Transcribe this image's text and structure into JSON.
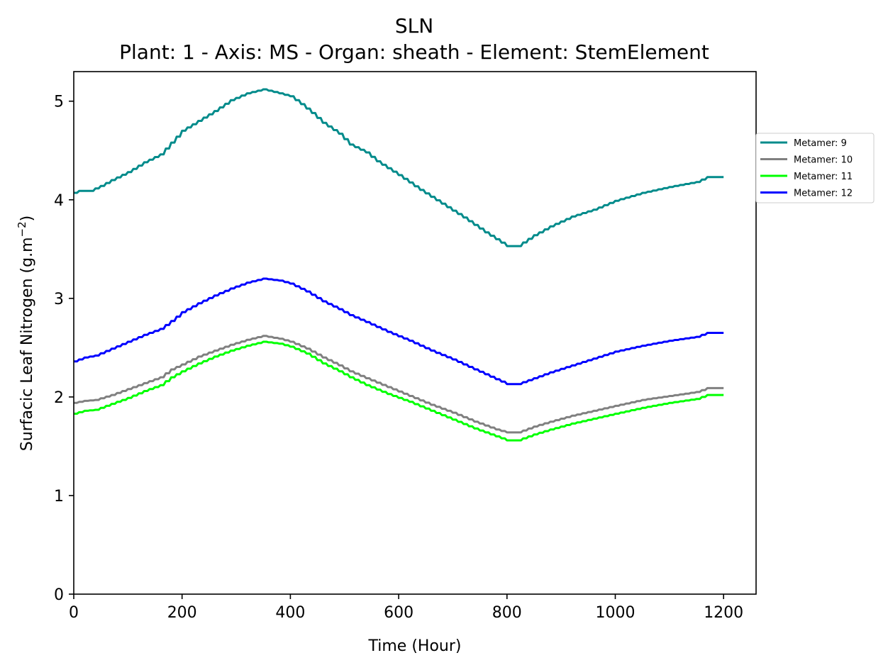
{
  "chart_data": {
    "type": "line",
    "title": "SLN",
    "subtitle": "Plant: 1 - Axis: MS - Organ: sheath - Element: StemElement",
    "xlabel": "Time (Hour)",
    "ylabel": "Surfacic Leaf Nitrogen (g.m",
    "ylabel_superscript": "−2",
    "ylabel_suffix": ")",
    "xlim": [
      0,
      1260
    ],
    "ylim": [
      0,
      5.3
    ],
    "xticks": [
      "0",
      "200",
      "400",
      "600",
      "800",
      "1000",
      "1200"
    ],
    "yticks": [
      "0",
      "1",
      "2",
      "3",
      "4",
      "5"
    ],
    "grid": false,
    "legend_position": "right-outside",
    "series": [
      {
        "name": "Metamer: 9",
        "color": "#008b8b",
        "points": [
          [
            0,
            4.07
          ],
          [
            10,
            4.09
          ],
          [
            30,
            4.09
          ],
          [
            50,
            4.14
          ],
          [
            70,
            4.2
          ],
          [
            100,
            4.28
          ],
          [
            130,
            4.38
          ],
          [
            160,
            4.46
          ],
          [
            180,
            4.58
          ],
          [
            200,
            4.7
          ],
          [
            230,
            4.8
          ],
          [
            260,
            4.9
          ],
          [
            290,
            5.01
          ],
          [
            320,
            5.08
          ],
          [
            350,
            5.12
          ],
          [
            380,
            5.08
          ],
          [
            400,
            5.05
          ],
          [
            420,
            4.97
          ],
          [
            440,
            4.88
          ],
          [
            460,
            4.78
          ],
          [
            490,
            4.67
          ],
          [
            510,
            4.56
          ],
          [
            540,
            4.48
          ],
          [
            560,
            4.39
          ],
          [
            600,
            4.25
          ],
          [
            640,
            4.1
          ],
          [
            680,
            3.96
          ],
          [
            720,
            3.82
          ],
          [
            760,
            3.67
          ],
          [
            800,
            3.53
          ],
          [
            820,
            3.53
          ],
          [
            850,
            3.64
          ],
          [
            880,
            3.73
          ],
          [
            920,
            3.83
          ],
          [
            960,
            3.9
          ],
          [
            1000,
            3.99
          ],
          [
            1050,
            4.07
          ],
          [
            1100,
            4.13
          ],
          [
            1150,
            4.18
          ],
          [
            1170,
            4.23
          ],
          [
            1200,
            4.23
          ]
        ]
      },
      {
        "name": "Metamer: 10",
        "color": "#808080",
        "points": [
          [
            0,
            1.94
          ],
          [
            20,
            1.96
          ],
          [
            40,
            1.97
          ],
          [
            70,
            2.02
          ],
          [
            100,
            2.08
          ],
          [
            130,
            2.14
          ],
          [
            160,
            2.2
          ],
          [
            180,
            2.28
          ],
          [
            200,
            2.33
          ],
          [
            230,
            2.41
          ],
          [
            260,
            2.47
          ],
          [
            290,
            2.53
          ],
          [
            320,
            2.58
          ],
          [
            350,
            2.62
          ],
          [
            380,
            2.59
          ],
          [
            400,
            2.56
          ],
          [
            430,
            2.49
          ],
          [
            460,
            2.4
          ],
          [
            490,
            2.32
          ],
          [
            510,
            2.26
          ],
          [
            540,
            2.19
          ],
          [
            580,
            2.1
          ],
          [
            620,
            2.01
          ],
          [
            660,
            1.92
          ],
          [
            700,
            1.84
          ],
          [
            740,
            1.75
          ],
          [
            780,
            1.67
          ],
          [
            800,
            1.64
          ],
          [
            820,
            1.64
          ],
          [
            850,
            1.7
          ],
          [
            880,
            1.75
          ],
          [
            920,
            1.81
          ],
          [
            960,
            1.86
          ],
          [
            1000,
            1.91
          ],
          [
            1050,
            1.97
          ],
          [
            1100,
            2.01
          ],
          [
            1150,
            2.05
          ],
          [
            1170,
            2.09
          ],
          [
            1200,
            2.09
          ]
        ]
      },
      {
        "name": "Metamer: 11",
        "color": "#00ff00",
        "points": [
          [
            0,
            1.83
          ],
          [
            20,
            1.86
          ],
          [
            40,
            1.87
          ],
          [
            70,
            1.93
          ],
          [
            100,
            1.99
          ],
          [
            130,
            2.06
          ],
          [
            160,
            2.12
          ],
          [
            180,
            2.2
          ],
          [
            200,
            2.26
          ],
          [
            230,
            2.34
          ],
          [
            260,
            2.41
          ],
          [
            290,
            2.47
          ],
          [
            320,
            2.52
          ],
          [
            350,
            2.56
          ],
          [
            380,
            2.54
          ],
          [
            400,
            2.51
          ],
          [
            430,
            2.44
          ],
          [
            460,
            2.34
          ],
          [
            490,
            2.26
          ],
          [
            510,
            2.2
          ],
          [
            540,
            2.12
          ],
          [
            580,
            2.03
          ],
          [
            620,
            1.95
          ],
          [
            660,
            1.86
          ],
          [
            700,
            1.77
          ],
          [
            740,
            1.68
          ],
          [
            780,
            1.6
          ],
          [
            800,
            1.56
          ],
          [
            820,
            1.56
          ],
          [
            850,
            1.62
          ],
          [
            880,
            1.67
          ],
          [
            920,
            1.73
          ],
          [
            960,
            1.78
          ],
          [
            1000,
            1.83
          ],
          [
            1050,
            1.89
          ],
          [
            1100,
            1.94
          ],
          [
            1150,
            1.98
          ],
          [
            1170,
            2.02
          ],
          [
            1200,
            2.02
          ]
        ]
      },
      {
        "name": "Metamer: 12",
        "color": "#0000ff",
        "points": [
          [
            0,
            2.36
          ],
          [
            20,
            2.4
          ],
          [
            40,
            2.42
          ],
          [
            70,
            2.49
          ],
          [
            100,
            2.56
          ],
          [
            130,
            2.63
          ],
          [
            160,
            2.69
          ],
          [
            180,
            2.77
          ],
          [
            200,
            2.86
          ],
          [
            230,
            2.95
          ],
          [
            260,
            3.03
          ],
          [
            290,
            3.1
          ],
          [
            320,
            3.16
          ],
          [
            350,
            3.2
          ],
          [
            380,
            3.18
          ],
          [
            400,
            3.15
          ],
          [
            430,
            3.07
          ],
          [
            460,
            2.97
          ],
          [
            490,
            2.89
          ],
          [
            510,
            2.83
          ],
          [
            540,
            2.76
          ],
          [
            580,
            2.66
          ],
          [
            620,
            2.57
          ],
          [
            660,
            2.47
          ],
          [
            700,
            2.38
          ],
          [
            740,
            2.28
          ],
          [
            780,
            2.18
          ],
          [
            800,
            2.13
          ],
          [
            820,
            2.13
          ],
          [
            850,
            2.19
          ],
          [
            880,
            2.25
          ],
          [
            920,
            2.32
          ],
          [
            960,
            2.39
          ],
          [
            1000,
            2.46
          ],
          [
            1050,
            2.52
          ],
          [
            1100,
            2.57
          ],
          [
            1150,
            2.61
          ],
          [
            1170,
            2.65
          ],
          [
            1200,
            2.65
          ]
        ]
      }
    ]
  }
}
